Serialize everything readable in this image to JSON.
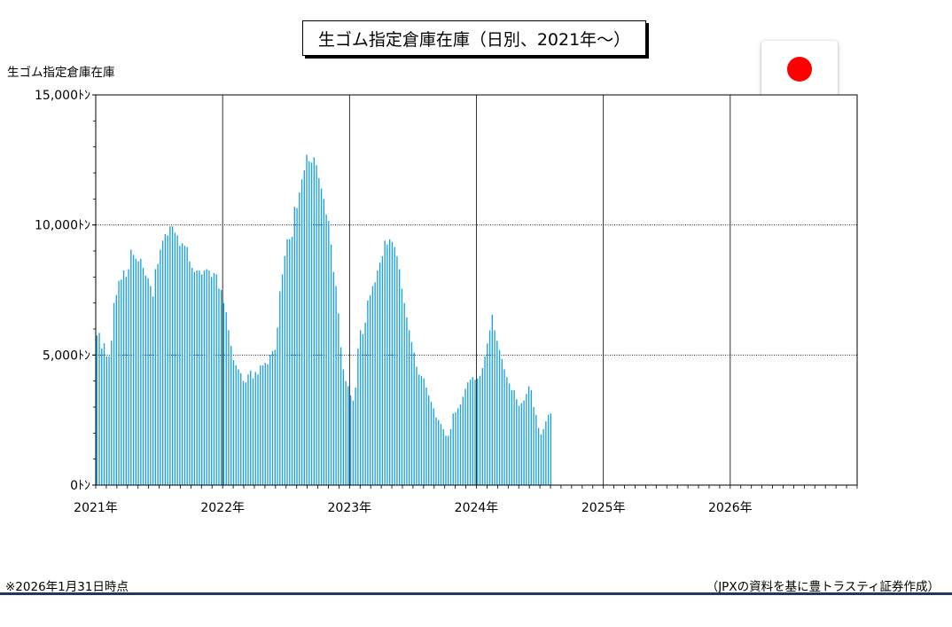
{
  "header": {
    "title": "生ゴム指定倉庫在庫（日別、2021年～）"
  },
  "flag": {
    "icon": "japan-flag-icon",
    "disc_color": "#ff0000"
  },
  "footer": {
    "note": "※2026年1月31日時点",
    "source": "（JPXの資料を基に豊トラスティ証券作成）",
    "rule_color": "#1f3864"
  },
  "chart_data": {
    "type": "bar",
    "title": "",
    "ylabel": "生ゴム指定倉庫在庫",
    "xlabel": "",
    "ylim": [
      0,
      15000
    ],
    "y_ticks": [
      {
        "value": 0,
        "label": "0ﾄﾝ"
      },
      {
        "value": 5000,
        "label": "5,000ﾄﾝ"
      },
      {
        "value": 10000,
        "label": "10,000ﾄﾝ"
      },
      {
        "value": 15000,
        "label": "15,000ﾄﾝ"
      }
    ],
    "x_range": [
      2021,
      2027
    ],
    "x_ticks": [
      {
        "value": 2021,
        "label": "2021年"
      },
      {
        "value": 2022,
        "label": "2022年"
      },
      {
        "value": 2023,
        "label": "2023年"
      },
      {
        "value": 2024,
        "label": "2024年"
      },
      {
        "value": 2025,
        "label": "2025年"
      },
      {
        "value": 2026,
        "label": "2026年"
      }
    ],
    "grid": true,
    "bar_color": "#1ba1e2",
    "points_per_year": 52,
    "start": 2021,
    "values": [
      5750,
      5850,
      5250,
      5450,
      4950,
      4950,
      5550,
      7000,
      7300,
      7850,
      7900,
      8250,
      8000,
      8300,
      9050,
      8850,
      8700,
      8600,
      8700,
      8350,
      8050,
      7950,
      7650,
      7250,
      8300,
      8500,
      9050,
      9400,
      9650,
      9600,
      9950,
      9950,
      9700,
      9600,
      9200,
      9300,
      9200,
      9150,
      8600,
      8350,
      8200,
      8250,
      8250,
      8100,
      8250,
      8300,
      8250,
      8000,
      8150,
      8100,
      7550,
      7500,
      7000,
      6650,
      5950,
      5350,
      4800,
      4600,
      4450,
      4300,
      4000,
      3950,
      4250,
      4400,
      4100,
      4350,
      4250,
      4600,
      4600,
      4700,
      4650,
      5000,
      5150,
      5200,
      6050,
      7450,
      8100,
      8800,
      9450,
      9450,
      9550,
      10700,
      10650,
      11250,
      11750,
      12100,
      12700,
      12450,
      12400,
      12600,
      12300,
      11800,
      11400,
      11000,
      10400,
      10150,
      9250,
      8200,
      7650,
      6600,
      5300,
      4450,
      4000,
      3800,
      3450,
      3250,
      3750,
      5250,
      5950,
      5800,
      6250,
      7100,
      7300,
      7650,
      7800,
      8250,
      8550,
      8800,
      9400,
      9250,
      9450,
      9350,
      9150,
      8800,
      8300,
      7550,
      7000,
      6450,
      5950,
      5500,
      5100,
      4550,
      4250,
      4200,
      4100,
      3750,
      3450,
      3200,
      2950,
      2600,
      2500,
      2350,
      2150,
      1900,
      1900,
      2150,
      2750,
      2800,
      2950,
      3100,
      3400,
      3700,
      3950,
      4050,
      4150,
      4050,
      4100,
      4200,
      4500,
      4950,
      5450,
      5950,
      6550,
      5950,
      5550,
      5200,
      4850,
      4450,
      4150,
      3900,
      3650,
      3650,
      3300,
      3050,
      3150,
      3250,
      3500,
      3800,
      3650,
      3000,
      2700,
      2200,
      1950,
      2150,
      2450,
      2700,
      2750
    ]
  }
}
